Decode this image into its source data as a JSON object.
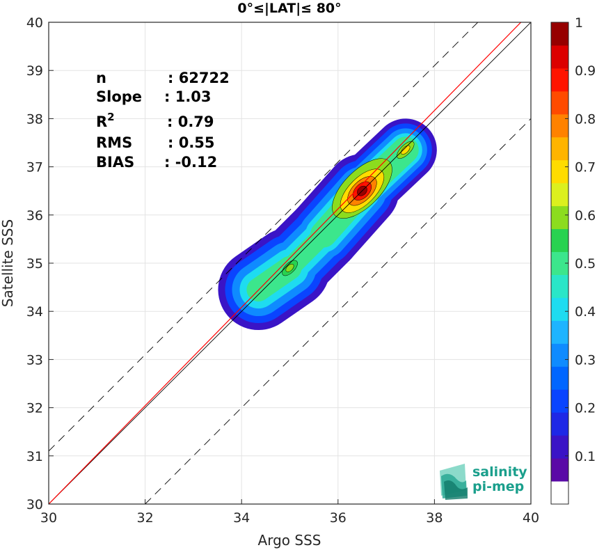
{
  "chart_data": {
    "type": "heatmap",
    "title": "0°≤|LAT|≤ 80°",
    "xlabel": "Argo SSS",
    "ylabel": "Satellite SSS",
    "xlim": [
      30,
      40
    ],
    "ylim": [
      30,
      40
    ],
    "xticks": [
      "30",
      "32",
      "34",
      "36",
      "38",
      "40"
    ],
    "yticks": [
      "30",
      "31",
      "32",
      "33",
      "34",
      "35",
      "36",
      "37",
      "38",
      "39",
      "40"
    ],
    "grid": true,
    "stats": [
      {
        "label": "n",
        "sep": ":",
        "value": "62722"
      },
      {
        "label": "Slope",
        "sep": ":",
        "value": "1.03"
      },
      {
        "label": "R",
        "sup": "2",
        "sep": ":",
        "value": "0.79"
      },
      {
        "label": "RMS",
        "sep": ":",
        "value": "0.55"
      },
      {
        "label": "BIAS",
        "sep": ":",
        "value": "-0.12"
      }
    ],
    "lines": {
      "identity": {
        "from": [
          30,
          30
        ],
        "to": [
          40,
          40
        ],
        "color": "#000000"
      },
      "regression": {
        "slope": 1.03,
        "intercept": -0.88,
        "color": "#ff0000"
      },
      "upper_dashed_offset": 1.1,
      "lower_dashed_offset": -2.0
    },
    "density_peaks": [
      {
        "x": 36.5,
        "y": 36.5,
        "level": 1.0
      },
      {
        "x": 37.4,
        "y": 37.35,
        "level": 0.65
      },
      {
        "x": 35.0,
        "y": 34.9,
        "level": 0.6
      }
    ],
    "colorbar": {
      "min": 0,
      "max": 1,
      "step": 0.05,
      "ticks": [
        "0.1",
        "0.2",
        "0.3",
        "0.4",
        "0.5",
        "0.6",
        "0.7",
        "0.8",
        "0.9",
        "1"
      ],
      "colors": [
        "#ffffff",
        "#5a0aa6",
        "#3a14c6",
        "#1e28e6",
        "#0a44ff",
        "#0066ff",
        "#0f8bff",
        "#1eb4ff",
        "#1edcf0",
        "#2ae6c8",
        "#3ce68c",
        "#28d250",
        "#8cdc1e",
        "#dcf01e",
        "#ffdc00",
        "#ffb400",
        "#ff8200",
        "#ff4b00",
        "#ff1400",
        "#dc0000",
        "#960000"
      ]
    }
  },
  "logo": {
    "line1": "salinity",
    "line2": "pi-mep"
  }
}
